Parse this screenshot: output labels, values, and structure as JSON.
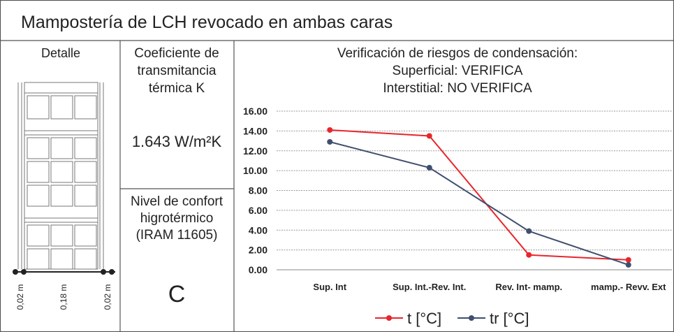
{
  "header": {
    "title": "Mampostería de LCH revocado en ambas caras"
  },
  "detail": {
    "title": "Detalle",
    "dimensions": [
      "0,02 m",
      "0,18 m",
      "0,02 m"
    ]
  },
  "coefficient": {
    "title": [
      "Coeficiente de",
      "transmitancia",
      "térmica K"
    ],
    "value": "1.643 W/m²K"
  },
  "comfort": {
    "title": [
      "Nivel de confort",
      "higrotérmico",
      "(IRAM 11605)"
    ],
    "value": "C"
  },
  "chart_data": {
    "type": "line",
    "title": "Verificación de riesgos de condensación:",
    "subtitle": [
      "Superficial: VERIFICA",
      "Interstitial: NO VERIFICA"
    ],
    "categories": [
      "Sup. Int",
      "Sup. Int.-Rev. Int.",
      "Rev. Int- mamp.",
      "mamp.- Revv. Ext"
    ],
    "series": [
      {
        "name": "t [°C]",
        "color": "#e8262c",
        "values": [
          14.1,
          13.5,
          1.5,
          1.0
        ]
      },
      {
        "name": "tr [°C]",
        "color": "#3f4f6e",
        "values": [
          12.9,
          10.3,
          3.9,
          0.5
        ]
      }
    ],
    "ylim": [
      0,
      16
    ],
    "yticks": [
      {
        "value": 0,
        "label": "0.00"
      },
      {
        "value": 2,
        "label": "2.00"
      },
      {
        "value": 4,
        "label": "4.00"
      },
      {
        "value": 6,
        "label": "6.00"
      },
      {
        "value": 8,
        "label": "8.00"
      },
      {
        "value": 10,
        "label": "10.00"
      },
      {
        "value": 12,
        "label": "12.00"
      },
      {
        "value": 14,
        "label": "14.00"
      },
      {
        "value": 16,
        "label": "16.00"
      }
    ],
    "grid": true,
    "legend": "bottom"
  }
}
